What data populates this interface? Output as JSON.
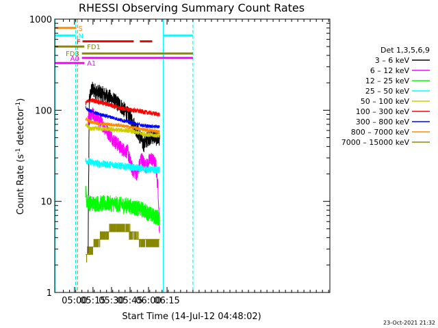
{
  "chart_data": {
    "type": "line",
    "title": "RHESSI Observing Summary Count Rates",
    "xlabel": "Start Time (14-Jul-12 04:48:02)",
    "ylabel_main": "Count Rate (s",
    "ylabel_sup1": "-1",
    "ylabel_mid": " detector",
    "ylabel_sup2": "-1",
    "ylabel_end": ")",
    "footer": "23-Oct-2021 21:32",
    "yscale": "log",
    "ylim": [
      1,
      1000
    ],
    "xlim_minutes": [
      -4,
      219
    ],
    "x_units": "minutes after 04:48:02 (script-only)",
    "x_ticks": [
      {
        "label": "05:00",
        "min": 12
      },
      {
        "label": "05:15",
        "min": 27
      },
      {
        "label": "05:30",
        "min": 42
      },
      {
        "label": "05:45",
        "min": 57
      },
      {
        "label": "06:00",
        "min": 72
      },
      {
        "label": "06:15",
        "min": 87
      }
    ],
    "y_ticks": [
      {
        "label": "1",
        "value": 1
      },
      {
        "label": "10",
        "value": 10
      },
      {
        "label": "100",
        "value": 100
      },
      {
        "label": "1000",
        "value": 1000
      }
    ],
    "legend_title": "Det 1,3,5,6,9",
    "series": [
      {
        "name": "3 – 6 keV",
        "color": "#000000",
        "start": 23,
        "end": 81,
        "anchors": [
          [
            23,
            2.5
          ],
          [
            24,
            130
          ],
          [
            26,
            170
          ],
          [
            30,
            160
          ],
          [
            40,
            140
          ],
          [
            50,
            110
          ],
          [
            58,
            80
          ],
          [
            64,
            55
          ],
          [
            68,
            42
          ],
          [
            72,
            50
          ],
          [
            76,
            52
          ],
          [
            80,
            48
          ],
          [
            81,
            48
          ]
        ],
        "noise": 0.09
      },
      {
        "name": "6 – 12 keV",
        "color": "#ff00ff",
        "start": 23,
        "end": 81,
        "anchors": [
          [
            23,
            80
          ],
          [
            27,
            90
          ],
          [
            33,
            75
          ],
          [
            40,
            55
          ],
          [
            45,
            45
          ],
          [
            50,
            38
          ],
          [
            55,
            35
          ],
          [
            59,
            22
          ],
          [
            63,
            20
          ],
          [
            66,
            30
          ],
          [
            70,
            24
          ],
          [
            74,
            30
          ],
          [
            78,
            25
          ],
          [
            80,
            12
          ],
          [
            81,
            4
          ]
        ],
        "noise": 0.08
      },
      {
        "name": "12 – 25 keV",
        "color": "#00ff00",
        "start": 21,
        "end": 81,
        "anchors": [
          [
            21,
            14
          ],
          [
            22,
            10
          ],
          [
            25,
            9.5
          ],
          [
            40,
            9.5
          ],
          [
            55,
            9
          ],
          [
            68,
            8
          ],
          [
            75,
            7
          ],
          [
            81,
            6.5
          ]
        ],
        "noise": 0.09
      },
      {
        "name": "25 – 50 keV",
        "color": "#00ffff",
        "start": 21,
        "end": 81,
        "anchors": [
          [
            21,
            28
          ],
          [
            30,
            26
          ],
          [
            45,
            25
          ],
          [
            60,
            23.5
          ],
          [
            70,
            22.5
          ],
          [
            81,
            22
          ]
        ],
        "noise": 0.04
      },
      {
        "name": "50 – 100 keV",
        "color": "#cccc00",
        "start": 21,
        "end": 81,
        "anchors": [
          [
            21,
            70
          ],
          [
            25,
            62
          ],
          [
            30,
            63
          ],
          [
            45,
            61
          ],
          [
            55,
            60
          ],
          [
            65,
            56
          ],
          [
            75,
            53
          ],
          [
            81,
            53
          ]
        ],
        "noise": 0.025
      },
      {
        "name": "100 – 300 keV",
        "color": "#ff0000",
        "start": 21,
        "end": 81,
        "anchors": [
          [
            21,
            120
          ],
          [
            25,
            130
          ],
          [
            30,
            125
          ],
          [
            40,
            115
          ],
          [
            50,
            105
          ],
          [
            60,
            100
          ],
          [
            70,
            95
          ],
          [
            81,
            90
          ]
        ],
        "noise": 0.025
      },
      {
        "name": "300 – 800 keV",
        "color": "#0000ff",
        "start": 21,
        "end": 81,
        "anchors": [
          [
            21,
            105
          ],
          [
            25,
            98
          ],
          [
            30,
            92
          ],
          [
            40,
            85
          ],
          [
            50,
            78
          ],
          [
            60,
            72
          ],
          [
            70,
            67
          ],
          [
            81,
            66
          ]
        ],
        "noise": 0.02
      },
      {
        "name": "800 – 7000 keV",
        "color": "#ff8800",
        "start": 21,
        "end": 81,
        "anchors": [
          [
            21,
            80
          ],
          [
            25,
            75
          ],
          [
            30,
            72
          ],
          [
            40,
            70
          ],
          [
            50,
            68
          ],
          [
            60,
            64
          ],
          [
            70,
            61
          ],
          [
            81,
            58
          ]
        ],
        "noise": 0.02
      },
      {
        "name": "7000 – 15000 keV",
        "color": "#888800",
        "start": 21,
        "end": 81,
        "anchors": [
          [
            21,
            2.5
          ],
          [
            24,
            2.8
          ],
          [
            28,
            3.2
          ],
          [
            32,
            3.8
          ],
          [
            36,
            4.3
          ],
          [
            40,
            4.7
          ],
          [
            44,
            5.2
          ],
          [
            48,
            5.5
          ],
          [
            52,
            5.2
          ],
          [
            56,
            4.7
          ],
          [
            60,
            4.3
          ],
          [
            64,
            3.8
          ],
          [
            70,
            3.6
          ],
          [
            76,
            3.6
          ],
          [
            81,
            3.6
          ]
        ],
        "noise": 0.05,
        "step": true
      }
    ],
    "flags": [
      {
        "label": "S",
        "color": "#ff8800",
        "y": 800,
        "segments": [
          [
            -4,
            13.5
          ]
        ],
        "label_at": 14,
        "label_side": "right"
      },
      {
        "label": "N",
        "color": "#00ffff",
        "y": 660,
        "segments": [
          [
            -4,
            13
          ],
          [
            84,
            108
          ]
        ],
        "label_at": 14,
        "label_side": "right"
      },
      {
        "label": "F",
        "color": "#ff0000",
        "y": 570,
        "segments": [
          [
            18.5,
            60
          ],
          [
            65,
            75
          ]
        ],
        "label_at": 18,
        "label_side": "left"
      },
      {
        "label": "FD1",
        "color": "#888800",
        "y": 500,
        "segments": [
          [
            -4,
            20
          ]
        ],
        "label_at": 21,
        "label_side": "right"
      },
      {
        "label": "FD3",
        "color": "#888800",
        "y": 420,
        "segments": [
          [
            18,
            108
          ]
        ],
        "label_at": 17,
        "label_side": "left"
      },
      {
        "label": "A0",
        "color": "#ff00ff",
        "y": 375,
        "segments": [
          [
            18,
            108
          ]
        ],
        "label_at": 17,
        "label_side": "left"
      },
      {
        "label": "A1",
        "color": "#ff00ff",
        "y": 330,
        "segments": [
          [
            -4,
            20
          ]
        ],
        "label_at": 21,
        "label_side": "right"
      }
    ],
    "vlines": [
      {
        "min": -3.8,
        "color": "#00ffff",
        "style": "solid"
      },
      {
        "min": 13,
        "color": "#00ffff",
        "style": "dashed"
      },
      {
        "min": 14.5,
        "color": "#ff8800",
        "style": "dashed"
      },
      {
        "min": 84,
        "color": "#00ffff",
        "style": "solid"
      },
      {
        "min": 108,
        "color": "#00ffff",
        "style": "dashed"
      }
    ]
  }
}
